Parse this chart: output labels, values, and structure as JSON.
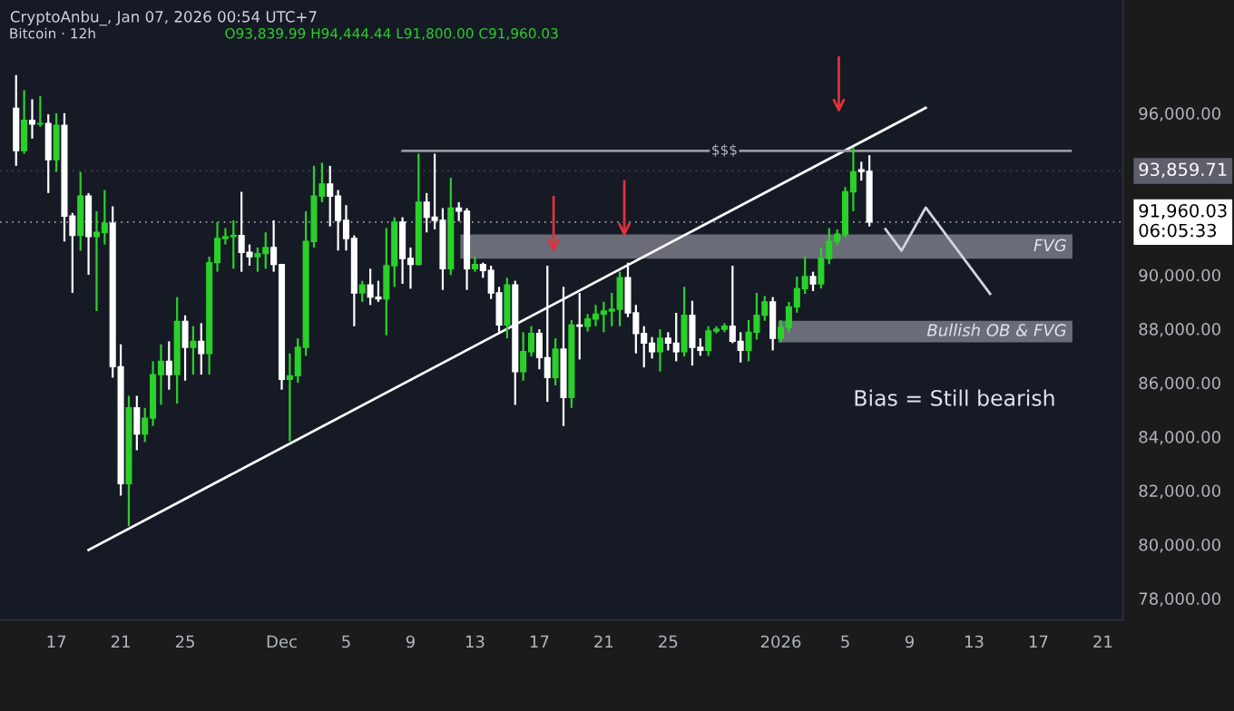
{
  "chart_data": {
    "type": "candlestick",
    "title": "Bitcoin · 12h",
    "subtitle": "O93,839.99 H94,444.44 L91,800.00 C91,960.03",
    "x": [
      "2025-11-14T12:00",
      "2025-11-15T00:00",
      "2025-11-15T12:00",
      "2025-11-16T00:00",
      "2025-11-16T12:00",
      "2025-11-17T00:00",
      "2025-11-17T12:00",
      "2025-11-18T00:00",
      "2025-11-18T12:00",
      "2025-11-19T00:00",
      "2025-11-19T12:00",
      "2025-11-20T00:00",
      "2025-11-20T12:00",
      "2025-11-21T00:00",
      "2025-11-21T12:00",
      "2025-11-22T00:00",
      "2025-11-22T12:00",
      "2025-11-23T00:00",
      "2025-11-23T12:00",
      "2025-11-24T00:00",
      "2025-11-24T12:00",
      "2025-11-25T00:00",
      "2025-11-25T12:00",
      "2025-11-26T00:00",
      "2025-11-26T12:00",
      "2025-11-27T00:00",
      "2025-11-27T12:00",
      "2025-11-28T00:00",
      "2025-11-28T12:00",
      "2025-11-29T00:00",
      "2025-11-29T12:00",
      "2025-11-30T00:00",
      "2025-11-30T12:00",
      "2025-12-01T00:00",
      "2025-12-01T12:00",
      "2025-12-02T00:00",
      "2025-12-02T12:00",
      "2025-12-03T00:00",
      "2025-12-03T12:00",
      "2025-12-04T00:00",
      "2025-12-04T12:00",
      "2025-12-05T00:00",
      "2025-12-05T12:00",
      "2025-12-06T00:00",
      "2025-12-06T12:00",
      "2025-12-07T00:00",
      "2025-12-07T12:00",
      "2025-12-08T00:00",
      "2025-12-08T12:00",
      "2025-12-09T00:00",
      "2025-12-09T12:00",
      "2025-12-10T00:00",
      "2025-12-10T12:00",
      "2025-12-11T00:00",
      "2025-12-11T12:00",
      "2025-12-12T00:00",
      "2025-12-12T12:00",
      "2025-12-13T00:00",
      "2025-12-13T12:00",
      "2025-12-14T00:00",
      "2025-12-14T12:00",
      "2025-12-15T00:00",
      "2025-12-15T12:00",
      "2025-12-16T00:00",
      "2025-12-16T12:00",
      "2025-12-17T00:00",
      "2025-12-17T12:00",
      "2025-12-18T00:00",
      "2025-12-18T12:00",
      "2025-12-19T00:00",
      "2025-12-19T12:00",
      "2025-12-20T00:00",
      "2025-12-20T12:00",
      "2025-12-21T00:00",
      "2025-12-21T12:00",
      "2025-12-22T00:00",
      "2025-12-22T12:00",
      "2025-12-23T00:00",
      "2025-12-23T12:00",
      "2025-12-24T00:00",
      "2025-12-24T12:00",
      "2025-12-25T00:00",
      "2025-12-25T12:00",
      "2025-12-26T00:00",
      "2025-12-26T12:00",
      "2025-12-27T00:00",
      "2025-12-27T12:00",
      "2025-12-28T00:00",
      "2025-12-28T12:00",
      "2025-12-29T00:00",
      "2025-12-29T12:00",
      "2025-12-30T00:00",
      "2025-12-30T12:00",
      "2025-12-31T00:00",
      "2025-12-31T12:00",
      "2026-01-01T00:00",
      "2026-01-01T12:00",
      "2026-01-02T00:00",
      "2026-01-02T12:00",
      "2026-01-03T00:00",
      "2026-01-03T12:00",
      "2026-01-04T00:00",
      "2026-01-04T12:00",
      "2026-01-05T00:00",
      "2026-01-05T12:00",
      "2026-01-06T00:00",
      "2026-01-06T12:00"
    ],
    "ohlc": [
      [
        96181,
        97416,
        94048,
        94610
      ],
      [
        94610,
        96855,
        94497,
        95732
      ],
      [
        95732,
        96518,
        95058,
        95600
      ],
      [
        95600,
        96630,
        95500,
        95620
      ],
      [
        95620,
        95957,
        93038,
        94273
      ],
      [
        94273,
        96001,
        93824,
        95553
      ],
      [
        95553,
        96001,
        91242,
        92185
      ],
      [
        92185,
        92300,
        89334,
        91467
      ],
      [
        91467,
        93824,
        90905,
        92926
      ],
      [
        92926,
        93038,
        90007,
        91422
      ],
      [
        91422,
        92365,
        88660,
        91579
      ],
      [
        91579,
        93150,
        91130,
        91916
      ],
      [
        91916,
        92544,
        86191,
        86595
      ],
      [
        86595,
        87427,
        81813,
        82262
      ],
      [
        82262,
        85517,
        80691,
        85068
      ],
      [
        85068,
        85517,
        83497,
        84103
      ],
      [
        84103,
        85068,
        83800,
        84687
      ],
      [
        84687,
        86797,
        84400,
        86303
      ],
      [
        86303,
        87426,
        85180,
        86797
      ],
      [
        86797,
        87538,
        85742,
        86303
      ],
      [
        86303,
        89177,
        85225,
        88279
      ],
      [
        88279,
        88503,
        86079,
        87313
      ],
      [
        87313,
        88099,
        86303,
        87538
      ],
      [
        87538,
        88211,
        86303,
        87089
      ],
      [
        87089,
        90681,
        86303,
        90456
      ],
      [
        90456,
        91961,
        90119,
        91354
      ],
      [
        91354,
        91736,
        91130,
        91422
      ],
      [
        91422,
        92027,
        90232,
        91467
      ],
      [
        91467,
        93083,
        90119,
        90838
      ],
      [
        90838,
        91130,
        90344,
        90681
      ],
      [
        90681,
        91018,
        90119,
        90793
      ],
      [
        90793,
        91579,
        90232,
        91018
      ],
      [
        91018,
        92027,
        90119,
        90389
      ],
      [
        90389,
        90400,
        85742,
        86123
      ],
      [
        86123,
        87089,
        83834,
        86258
      ],
      [
        86258,
        87650,
        86000,
        87313
      ],
      [
        87313,
        92365,
        87000,
        91242
      ],
      [
        91242,
        94048,
        91018,
        92926
      ],
      [
        92926,
        94160,
        92700,
        93375
      ],
      [
        93375,
        94048,
        91803,
        92926
      ],
      [
        92926,
        93150,
        90905,
        92027
      ],
      [
        92027,
        92589,
        90905,
        91354
      ],
      [
        91354,
        91467,
        88099,
        89334
      ],
      [
        89334,
        89783,
        89000,
        89626
      ],
      [
        89626,
        90232,
        88885,
        89177
      ],
      [
        89177,
        89783,
        88997,
        89110
      ],
      [
        89110,
        91736,
        87762,
        90344
      ],
      [
        90344,
        92141,
        89558,
        91961
      ],
      [
        91961,
        92141,
        89671,
        90613
      ],
      [
        90613,
        91018,
        89491,
        90389
      ],
      [
        90389,
        94497,
        90344,
        92701
      ],
      [
        92701,
        93038,
        91579,
        92141
      ],
      [
        92141,
        94497,
        91691,
        92027
      ],
      [
        92027,
        92477,
        89446,
        90232
      ],
      [
        90232,
        93599,
        90000,
        92477
      ],
      [
        92477,
        92701,
        92000,
        92365
      ],
      [
        92365,
        92477,
        89446,
        90232
      ],
      [
        90232,
        90681,
        90119,
        90389
      ],
      [
        90389,
        90456,
        89895,
        90165
      ],
      [
        90165,
        90344,
        89110,
        89334
      ],
      [
        89334,
        89558,
        87875,
        88144
      ],
      [
        88144,
        89895,
        87650,
        89626
      ],
      [
        89626,
        89783,
        85180,
        86415
      ],
      [
        86415,
        87875,
        86079,
        87157
      ],
      [
        87157,
        88099,
        86976,
        87830
      ],
      [
        87830,
        87987,
        86500,
        86931
      ],
      [
        86931,
        90344,
        85292,
        86191
      ],
      [
        86191,
        87650,
        85900,
        87246
      ],
      [
        87246,
        89558,
        84395,
        85450
      ],
      [
        85450,
        88324,
        85068,
        88144
      ],
      [
        88144,
        89334,
        86864,
        88099
      ],
      [
        88099,
        88548,
        87900,
        88368
      ],
      [
        88368,
        88885,
        88100,
        88548
      ],
      [
        88548,
        89000,
        87875,
        88660
      ],
      [
        88660,
        89334,
        88099,
        88727
      ],
      [
        88727,
        90119,
        88099,
        89895
      ],
      [
        89895,
        90456,
        88436,
        88593
      ],
      [
        88593,
        88885,
        87089,
        87830
      ],
      [
        87830,
        88099,
        86572,
        87470
      ],
      [
        87470,
        87695,
        86900,
        87157
      ],
      [
        87157,
        87987,
        86415,
        87650
      ],
      [
        87650,
        87875,
        87200,
        87470
      ],
      [
        87470,
        88593,
        86797,
        87157
      ],
      [
        87157,
        89558,
        86976,
        88503
      ],
      [
        88503,
        89042,
        86639,
        87313
      ],
      [
        87313,
        87650,
        87000,
        87200
      ],
      [
        87200,
        88099,
        87000,
        87920
      ],
      [
        87920,
        88099,
        87830,
        87987
      ],
      [
        87987,
        88211,
        87875,
        88099
      ],
      [
        88099,
        90344,
        87470,
        87538
      ],
      [
        87538,
        87875,
        86752,
        87201
      ],
      [
        87201,
        88324,
        86797,
        87875
      ],
      [
        87875,
        89334,
        87600,
        88503
      ],
      [
        88503,
        89221,
        88300,
        88997
      ],
      [
        88997,
        89177,
        87201,
        87650
      ],
      [
        87650,
        88324,
        87500,
        88054
      ],
      [
        88054,
        88997,
        87875,
        88817
      ],
      [
        88817,
        89940,
        88600,
        89491
      ],
      [
        89491,
        90681,
        89300,
        89940
      ],
      [
        89940,
        90119,
        89400,
        89671
      ],
      [
        89671,
        91018,
        89500,
        90613
      ],
      [
        90613,
        91736,
        90400,
        91242
      ],
      [
        91242,
        91691,
        91100,
        91512
      ],
      [
        91512,
        93263,
        91400,
        93083
      ],
      [
        93083,
        94722,
        92364,
        93824
      ],
      [
        93900,
        94200,
        93500,
        93840
      ],
      [
        93839.99,
        94444.44,
        91800,
        91960.03
      ]
    ],
    "colors": [
      "#ffffff",
      "#2ad12a",
      "#ffffff",
      "#2ad12a",
      "#ffffff",
      "#2ad12a",
      "#ffffff",
      "#ffffff",
      "#2ad12a",
      "#ffffff",
      "#2ad12a",
      "#2ad12a",
      "#ffffff",
      "#ffffff",
      "#2ad12a",
      "#ffffff",
      "#2ad12a",
      "#2ad12a",
      "#2ad12a",
      "#ffffff",
      "#2ad12a",
      "#ffffff",
      "#2ad12a",
      "#ffffff",
      "#2ad12a",
      "#2ad12a",
      "#2ad12a",
      "#2ad12a",
      "#ffffff",
      "#ffffff",
      "#2ad12a",
      "#2ad12a",
      "#ffffff",
      "#ffffff",
      "#2ad12a",
      "#2ad12a",
      "#2ad12a",
      "#2ad12a",
      "#2ad12a",
      "#ffffff",
      "#ffffff",
      "#ffffff",
      "#ffffff",
      "#2ad12a",
      "#ffffff",
      "#ffffff",
      "#2ad12a",
      "#2ad12a",
      "#ffffff",
      "#ffffff",
      "#2ad12a",
      "#ffffff",
      "#ffffff",
      "#ffffff",
      "#2ad12a",
      "#ffffff",
      "#ffffff",
      "#2ad12a",
      "#ffffff",
      "#ffffff",
      "#ffffff",
      "#2ad12a",
      "#ffffff",
      "#2ad12a",
      "#2ad12a",
      "#ffffff",
      "#ffffff",
      "#2ad12a",
      "#ffffff",
      "#2ad12a",
      "#ffffff",
      "#2ad12a",
      "#2ad12a",
      "#2ad12a",
      "#2ad12a",
      "#2ad12a",
      "#ffffff",
      "#ffffff",
      "#ffffff",
      "#ffffff",
      "#2ad12a",
      "#ffffff",
      "#ffffff",
      "#2ad12a",
      "#ffffff",
      "#ffffff",
      "#2ad12a",
      "#2ad12a",
      "#2ad12a",
      "#ffffff",
      "#ffffff",
      "#2ad12a",
      "#2ad12a",
      "#2ad12a",
      "#ffffff",
      "#2ad12a",
      "#2ad12a",
      "#2ad12a",
      "#2ad12a",
      "#ffffff",
      "#2ad12a",
      "#2ad12a",
      "#2ad12a",
      "#2ad12a",
      "#2ad12a",
      "#ffffff",
      "#ffffff"
    ],
    "series": [
      {
        "type": "line",
        "color": "#ffffff",
        "x": [
          "2025-11-19T00:00",
          "2026-01-10T00:00"
        ],
        "values": [
          79800,
          96200
        ]
      },
      {
        "type": "line",
        "color": "#9598a1",
        "x": [
          "2025-12-08T12:00",
          "2026-01-19T00:00"
        ],
        "values": [
          94600,
          94600
        ]
      },
      {
        "type": "line",
        "color": "#d1d4dc",
        "x": [
          "2026-01-07T12:00",
          "2026-01-08T12:00",
          "2026-01-10T00:00",
          "2026-01-14T00:00"
        ],
        "values": [
          91700,
          90900,
          92500,
          89300
        ]
      }
    ],
    "bands": [
      {
        "axis": "y",
        "from": 90600,
        "to": 91500,
        "label": "FVG",
        "color": "#6a6d78"
      },
      {
        "axis": "y",
        "from": 87500,
        "to": 88300,
        "label": "Bullish OB & FVG",
        "color": "#6a6d78"
      }
    ],
    "annotations": [
      "CryptoAnbu_, Jan 07, 2026 00:54 UTC+7",
      {
        "text": "$$$",
        "x": "2025-12-28T12:00",
        "y": 94600
      },
      "Bias = Still bearish"
    ],
    "ref_lines": [
      {
        "axis": "y",
        "value": 93859.71,
        "label": "93,859.71",
        "color": "#5d606b"
      },
      {
        "axis": "y",
        "value": 91960.03,
        "label": "91,960.03\n06:05:33",
        "color": "#ffffff"
      }
    ],
    "xlim": [
      "2025-11-13T12:00",
      "2026-01-22T06:00"
    ],
    "xticks": [
      {
        "value": "2025-11-17",
        "label": "17"
      },
      {
        "value": "2025-11-21",
        "label": "21"
      },
      {
        "value": "2025-11-25",
        "label": "25"
      },
      {
        "value": "2025-12-01",
        "label": "Dec"
      },
      {
        "value": "2025-12-05",
        "label": "5"
      },
      {
        "value": "2025-12-09",
        "label": "9"
      },
      {
        "value": "2025-12-13",
        "label": "13"
      },
      {
        "value": "2025-12-17",
        "label": "17"
      },
      {
        "value": "2025-12-21",
        "label": "21"
      },
      {
        "value": "2025-12-25",
        "label": "25"
      },
      {
        "value": "2026-01-01",
        "label": "2026"
      },
      {
        "value": "2026-01-05",
        "label": "5"
      },
      {
        "value": "2026-01-09",
        "label": "9"
      },
      {
        "value": "2026-01-13",
        "label": "13"
      },
      {
        "value": "2026-01-17",
        "label": "17"
      },
      {
        "value": "2026-01-21",
        "label": "21"
      }
    ],
    "ylim": [
      77200,
      100200
    ],
    "yticks": [
      {
        "value": 78000,
        "label": "78,000.00"
      },
      {
        "value": 80000,
        "label": "80,000.00"
      },
      {
        "value": 82000,
        "label": "82,000.00"
      },
      {
        "value": 84000,
        "label": "84,000.00"
      },
      {
        "value": 86000,
        "label": "86,000.00"
      },
      {
        "value": 88000,
        "label": "88,000.00"
      },
      {
        "value": 90000,
        "label": "90,000.00"
      },
      {
        "value": 96000,
        "label": "96,000.00"
      }
    ],
    "grid": false
  }
}
